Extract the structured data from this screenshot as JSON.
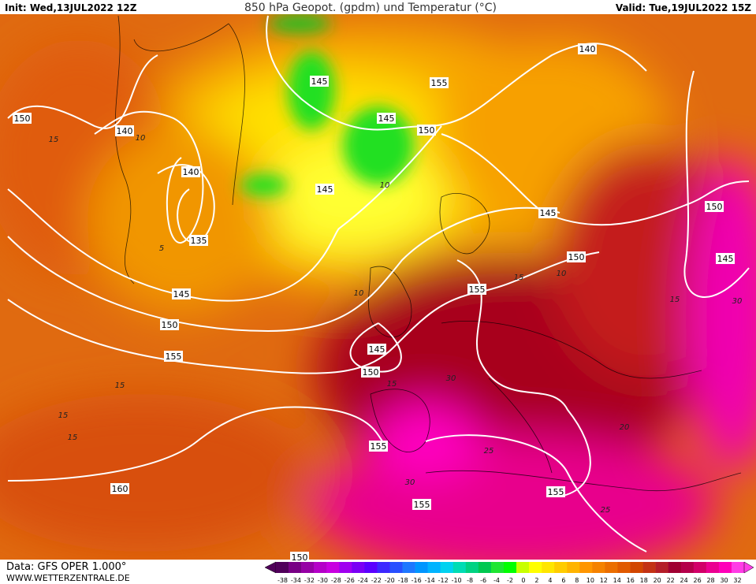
{
  "header": {
    "init": "Init: Wed,13JUL2022 12Z",
    "title": "850 hPa Geopot. (gpdm) und Temperatur (°C)",
    "valid": "Valid: Tue,19JUL2022 15Z"
  },
  "footer": {
    "data": "Data: GFS OPER 1.000°",
    "site": "WWW.WETTERZENTRALE.DE"
  },
  "geopotential_labels": [
    "150",
    "140",
    "140",
    "135",
    "145",
    "150",
    "155",
    "160",
    "145",
    "145",
    "145",
    "150",
    "155",
    "145",
    "150",
    "155",
    "150",
    "145",
    "155",
    "155",
    "140",
    "150",
    "150",
    "145",
    "155"
  ],
  "temperature_labels": [
    "15",
    "10",
    "5",
    "15",
    "15",
    "10",
    "10",
    "15",
    "15",
    "30",
    "25",
    "25",
    "20",
    "15",
    "10",
    "15",
    "30",
    "30"
  ],
  "colorbar": {
    "labels": [
      "-38",
      "-34",
      "-32",
      "-30",
      "-28",
      "-26",
      "-24",
      "-22",
      "-20",
      "-18",
      "-16",
      "-14",
      "-12",
      "-10",
      "-8",
      "-6",
      "-4",
      "-2",
      "0",
      "2",
      "4",
      "6",
      "8",
      "10",
      "12",
      "14",
      "16",
      "18",
      "20",
      "22",
      "24",
      "26",
      "28",
      "30",
      "32"
    ],
    "colors": [
      "#50005a",
      "#780085",
      "#9600a5",
      "#b400c8",
      "#c800e0",
      "#a000f0",
      "#7a00f5",
      "#5a00ff",
      "#3c28ff",
      "#2850ff",
      "#1e78ff",
      "#0096ff",
      "#00b4ff",
      "#00d2f0",
      "#00dcb4",
      "#00d282",
      "#00c850",
      "#1ee632",
      "#00ff00",
      "#c8ff00",
      "#ffff00",
      "#ffe600",
      "#ffcc00",
      "#ffb400",
      "#ff9600",
      "#f58200",
      "#eb6e00",
      "#e15a00",
      "#d24600",
      "#c33214",
      "#b41e28",
      "#a00032",
      "#b4004b",
      "#d20069",
      "#eb0091",
      "#ff00b9",
      "#ff3ce6"
    ]
  }
}
